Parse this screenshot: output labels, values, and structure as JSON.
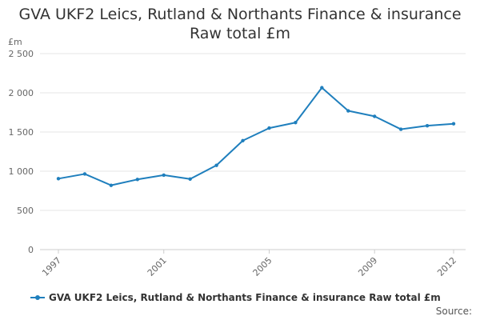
{
  "chart_data": {
    "type": "line",
    "title_line1": "GVA UKF2 Leics, Rutland & Northants Finance & insurance",
    "title_line2": "Raw total £m",
    "ylabel": "£m",
    "xlabel": "",
    "ylim": [
      0,
      2500
    ],
    "yticks": [
      {
        "value": 0,
        "label": "0"
      },
      {
        "value": 500,
        "label": "500"
      },
      {
        "value": 1000,
        "label": "1 000"
      },
      {
        "value": 1500,
        "label": "1 500"
      },
      {
        "value": 2000,
        "label": "2 000"
      },
      {
        "value": 2500,
        "label": "2 500"
      }
    ],
    "xlim": [
      1997,
      2012
    ],
    "xticks": [
      {
        "value": 1997,
        "label": "1997"
      },
      {
        "value": 2001,
        "label": "2001"
      },
      {
        "value": 2005,
        "label": "2005"
      },
      {
        "value": 2009,
        "label": "2009"
      },
      {
        "value": 2012,
        "label": "2012"
      }
    ],
    "grid": true,
    "legend_position": "bottom",
    "series": [
      {
        "name": "GVA UKF2 Leics, Rutland & Northants Finance & insurance Raw total £m",
        "color": "#1f7fbd",
        "x": [
          1997,
          1998,
          1999,
          2000,
          2001,
          2002,
          2003,
          2004,
          2005,
          2006,
          2007,
          2008,
          2009,
          2010,
          2011,
          2012
        ],
        "values": [
          905,
          965,
          820,
          895,
          950,
          900,
          1075,
          1390,
          1550,
          1620,
          2065,
          1770,
          1700,
          1535,
          1580,
          1605
        ]
      }
    ]
  },
  "source_label": "Source:"
}
